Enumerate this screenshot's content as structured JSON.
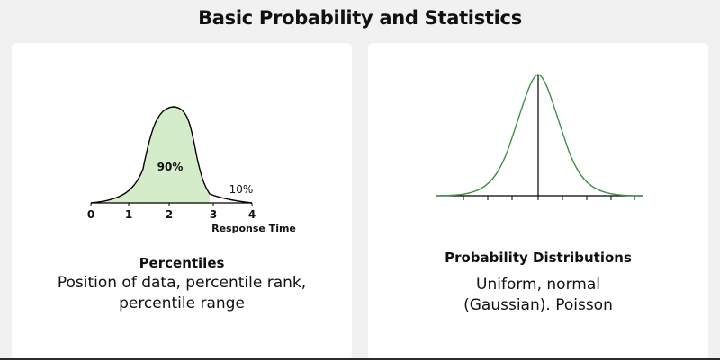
{
  "header": {
    "title": "Basic Probability and Statistics"
  },
  "percentiles": {
    "title": "Percentiles",
    "description": "Position of data, percentile rank, percentile range",
    "chart": {
      "tick_labels": [
        "0",
        "1",
        "2",
        "3",
        "4"
      ],
      "xlabel": "Response Time",
      "annotation_main": "90%",
      "annotation_tail": "10%",
      "fill_color": "#d5eccb",
      "stroke_color": "#000000"
    }
  },
  "distributions": {
    "title": "Probability Distributions",
    "description": "Uniform, normal (Gaussian). Poisson",
    "chart": {
      "stroke_color": "#3f8f45"
    }
  }
}
